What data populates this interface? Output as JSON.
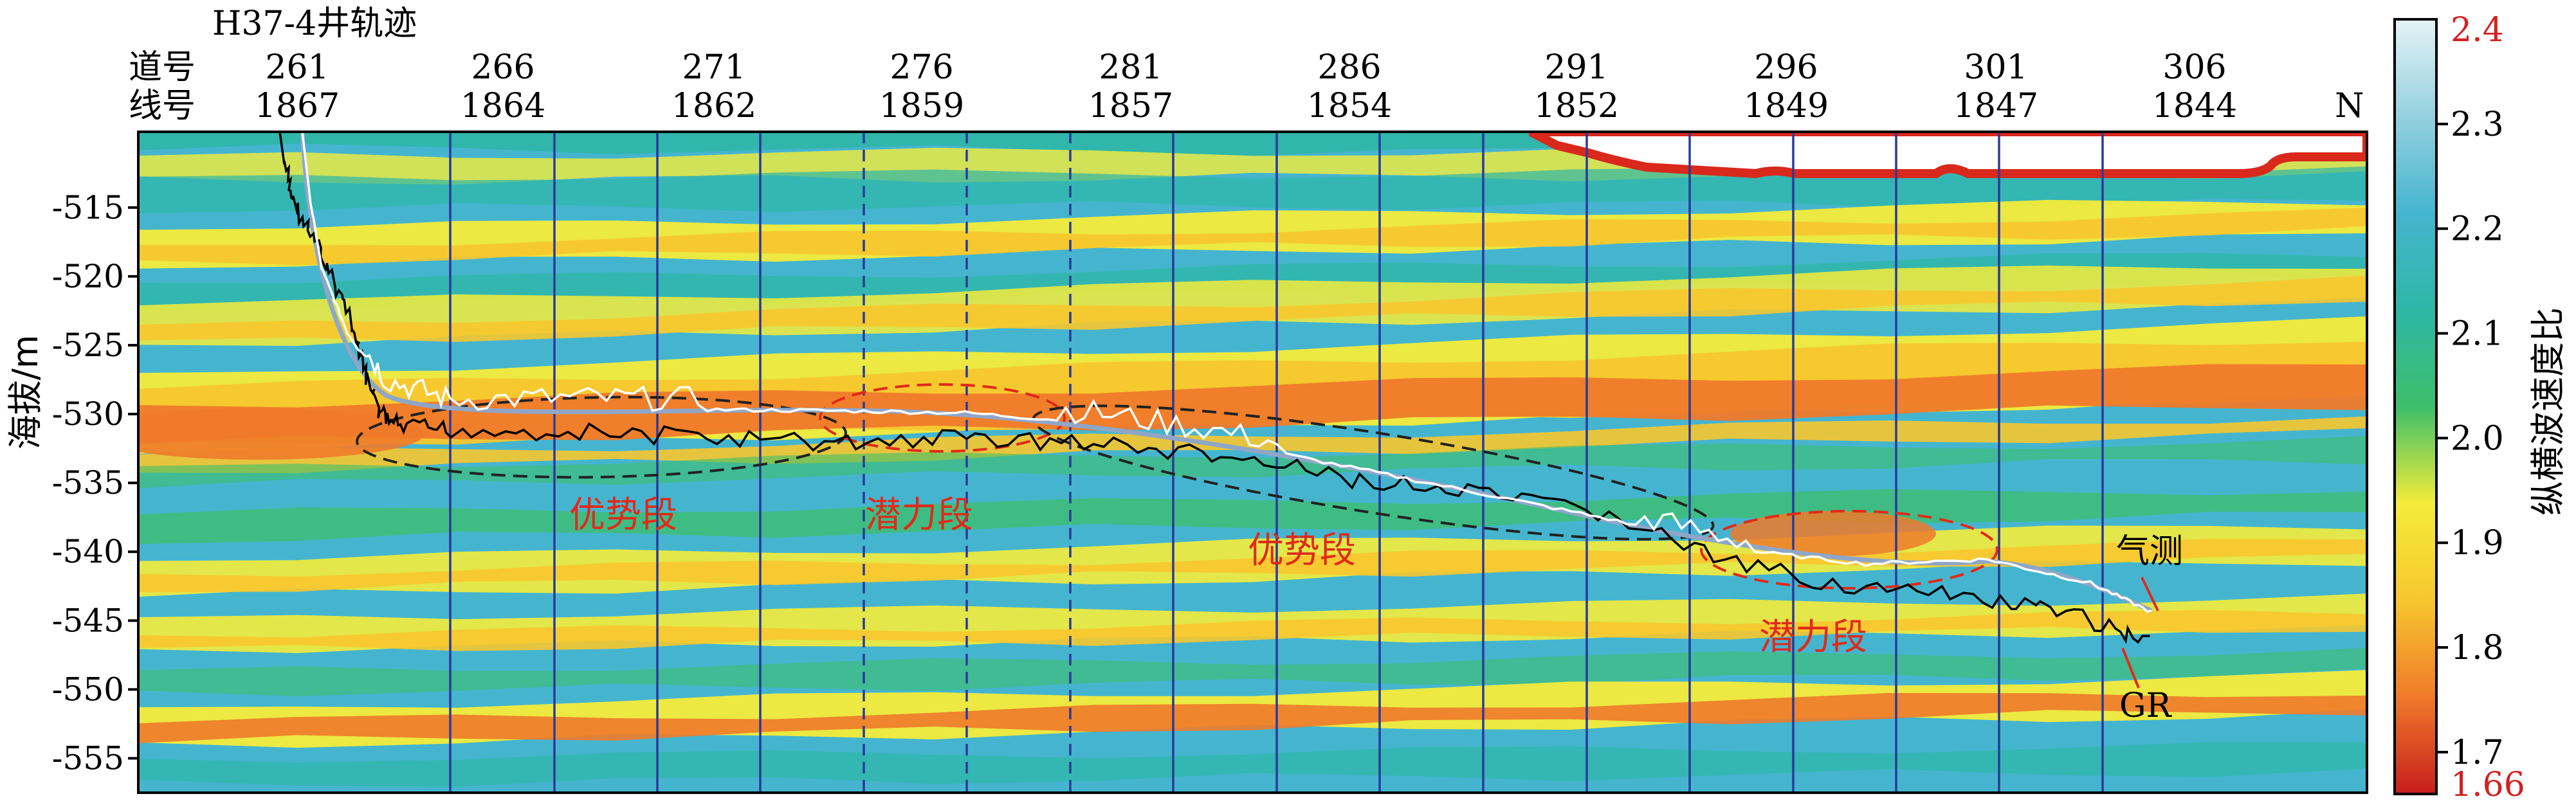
{
  "chart_data": {
    "type": "heatmap",
    "title": "H37-4井轨迹",
    "header_row_labels": {
      "trace": "道号",
      "line": "线号"
    },
    "x_ticks": [
      {
        "trace": "261",
        "line": "1867"
      },
      {
        "trace": "266",
        "line": "1864"
      },
      {
        "trace": "271",
        "line": "1862"
      },
      {
        "trace": "276",
        "line": "1859"
      },
      {
        "trace": "281",
        "line": "1857"
      },
      {
        "trace": "286",
        "line": "1854"
      },
      {
        "trace": "291",
        "line": "1852"
      },
      {
        "trace": "296",
        "line": "1849"
      },
      {
        "trace": "301",
        "line": "1847"
      },
      {
        "trace": "306",
        "line": "1844"
      }
    ],
    "direction_label": "N",
    "ylabel": "海拔/m",
    "ylim": [
      -557.5,
      -509.5
    ],
    "y_ticks": [
      -515,
      -520,
      -525,
      -530,
      -535,
      -540,
      -545,
      -550,
      -555
    ],
    "y_tick_labels": [
      "-515",
      "-520",
      "-525",
      "-530",
      "-535",
      "-540",
      "-545",
      "-550",
      "-555"
    ],
    "colorbar": {
      "label": "纵横波速度比",
      "range": [
        1.66,
        2.4
      ],
      "ticks": [
        1.7,
        1.8,
        1.9,
        2.0,
        2.1,
        2.2,
        2.3
      ],
      "tick_labels": [
        "1.7",
        "1.8",
        "1.9",
        "2.0",
        "2.1",
        "2.2",
        "2.3"
      ],
      "end_labels": [
        "2.4",
        "1.66"
      ],
      "end_label_color": "#d42020",
      "colors": [
        "#c81e1e",
        "#ef7a2a",
        "#f7c72e",
        "#f4ec3a",
        "#3dbf6a",
        "#2eb6a6",
        "#45b5cf",
        "#96d0df",
        "#e3f3f5"
      ]
    },
    "segments": [
      {
        "label": "优势段",
        "color": "#e02a1a"
      },
      {
        "label": "潜力段",
        "color": "#e02a1a"
      },
      {
        "label": "优势段",
        "color": "#e02a1a"
      },
      {
        "label": "潜力段",
        "color": "#e02a1a"
      }
    ],
    "curves": [
      {
        "name": "气测",
        "color": "#ffffff"
      },
      {
        "name": "GR",
        "color": "#000000"
      }
    ],
    "well_trajectory_color": "#8fa6c8",
    "grid": false
  }
}
